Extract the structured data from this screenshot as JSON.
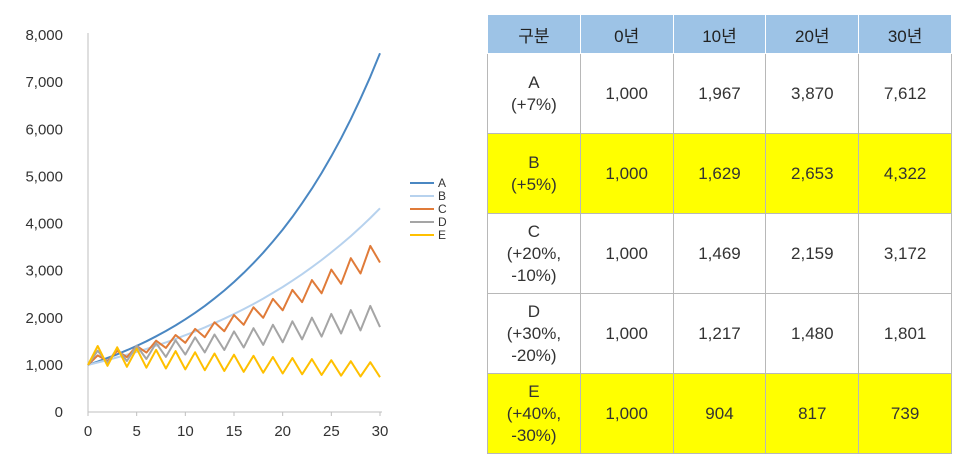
{
  "chart_data": {
    "type": "line",
    "x": [
      0,
      1,
      2,
      3,
      4,
      5,
      6,
      7,
      8,
      9,
      10,
      11,
      12,
      13,
      14,
      15,
      16,
      17,
      18,
      19,
      20,
      21,
      22,
      23,
      24,
      25,
      26,
      27,
      28,
      29,
      30
    ],
    "xticks": [
      "0",
      "5",
      "10",
      "15",
      "20",
      "25",
      "30"
    ],
    "yticks": [
      "0",
      "1,000",
      "2,000",
      "3,000",
      "4,000",
      "5,000",
      "6,000",
      "7,000",
      "8,000"
    ],
    "xlim": [
      0,
      30
    ],
    "ylim": [
      0,
      8000
    ],
    "legend_position": "right",
    "grid": false,
    "series": [
      {
        "name": "A",
        "color": "#4a87c2",
        "values": [
          1000,
          1070,
          1145,
          1225,
          1311,
          1403,
          1501,
          1606,
          1718,
          1838,
          1967,
          2105,
          2252,
          2410,
          2579,
          2759,
          2952,
          3159,
          3380,
          3617,
          3870,
          4141,
          4430,
          4741,
          5072,
          5427,
          5807,
          6214,
          6649,
          7114,
          7612
        ]
      },
      {
        "name": "B",
        "color": "#b7d2ee",
        "values": [
          1000,
          1050,
          1103,
          1158,
          1216,
          1276,
          1340,
          1407,
          1477,
          1551,
          1629,
          1710,
          1796,
          1886,
          1980,
          2079,
          2183,
          2292,
          2407,
          2527,
          2653,
          2786,
          2925,
          3072,
          3225,
          3386,
          3556,
          3733,
          3920,
          4116,
          4322
        ]
      },
      {
        "name": "C",
        "color": "#e07b39",
        "values": [
          1000,
          1200,
          1080,
          1296,
          1166,
          1400,
          1260,
          1512,
          1361,
          1633,
          1469,
          1763,
          1587,
          1904,
          1714,
          2057,
          1851,
          2221,
          1999,
          2399,
          2159,
          2591,
          2332,
          2798,
          2519,
          3022,
          2720,
          3264,
          2938,
          3525,
          3172
        ]
      },
      {
        "name": "D",
        "color": "#a5a5a5",
        "values": [
          1000,
          1300,
          1040,
          1352,
          1082,
          1406,
          1125,
          1462,
          1170,
          1521,
          1217,
          1582,
          1265,
          1645,
          1316,
          1711,
          1369,
          1779,
          1423,
          1850,
          1480,
          1925,
          1540,
          2002,
          1601,
          2082,
          1665,
          2165,
          1732,
          2252,
          1801
        ]
      },
      {
        "name": "E",
        "color": "#ffc000",
        "values": [
          1000,
          1400,
          980,
          1372,
          960,
          1345,
          941,
          1318,
          923,
          1292,
          904,
          1266,
          886,
          1241,
          869,
          1216,
          851,
          1192,
          834,
          1168,
          817,
          1145,
          801,
          1122,
          785,
          1099,
          770,
          1077,
          754,
          1056,
          739
        ]
      }
    ]
  },
  "table": {
    "headers": [
      "구분",
      "0년",
      "10년",
      "20년",
      "30년"
    ],
    "rows": [
      {
        "name": "A",
        "sub": "(+7%)",
        "values": [
          "1,000",
          "1,967",
          "3,870",
          "7,612"
        ]
      },
      {
        "name": "B",
        "sub": "(+5%)",
        "values": [
          "1,000",
          "1,629",
          "2,653",
          "4,322"
        ]
      },
      {
        "name": "C",
        "sub": "(+20%, -10%)",
        "values": [
          "1,000",
          "1,469",
          "2,159",
          "3,172"
        ]
      },
      {
        "name": "D",
        "sub": "(+30%, -20%)",
        "values": [
          "1,000",
          "1,217",
          "1,480",
          "1,801"
        ]
      },
      {
        "name": "E",
        "sub": "(+40%, -30%)",
        "values": [
          "1,000",
          "904",
          "817",
          "739"
        ]
      }
    ],
    "highlight_color": "#ffff00",
    "header_color": "#9dc3e6"
  }
}
